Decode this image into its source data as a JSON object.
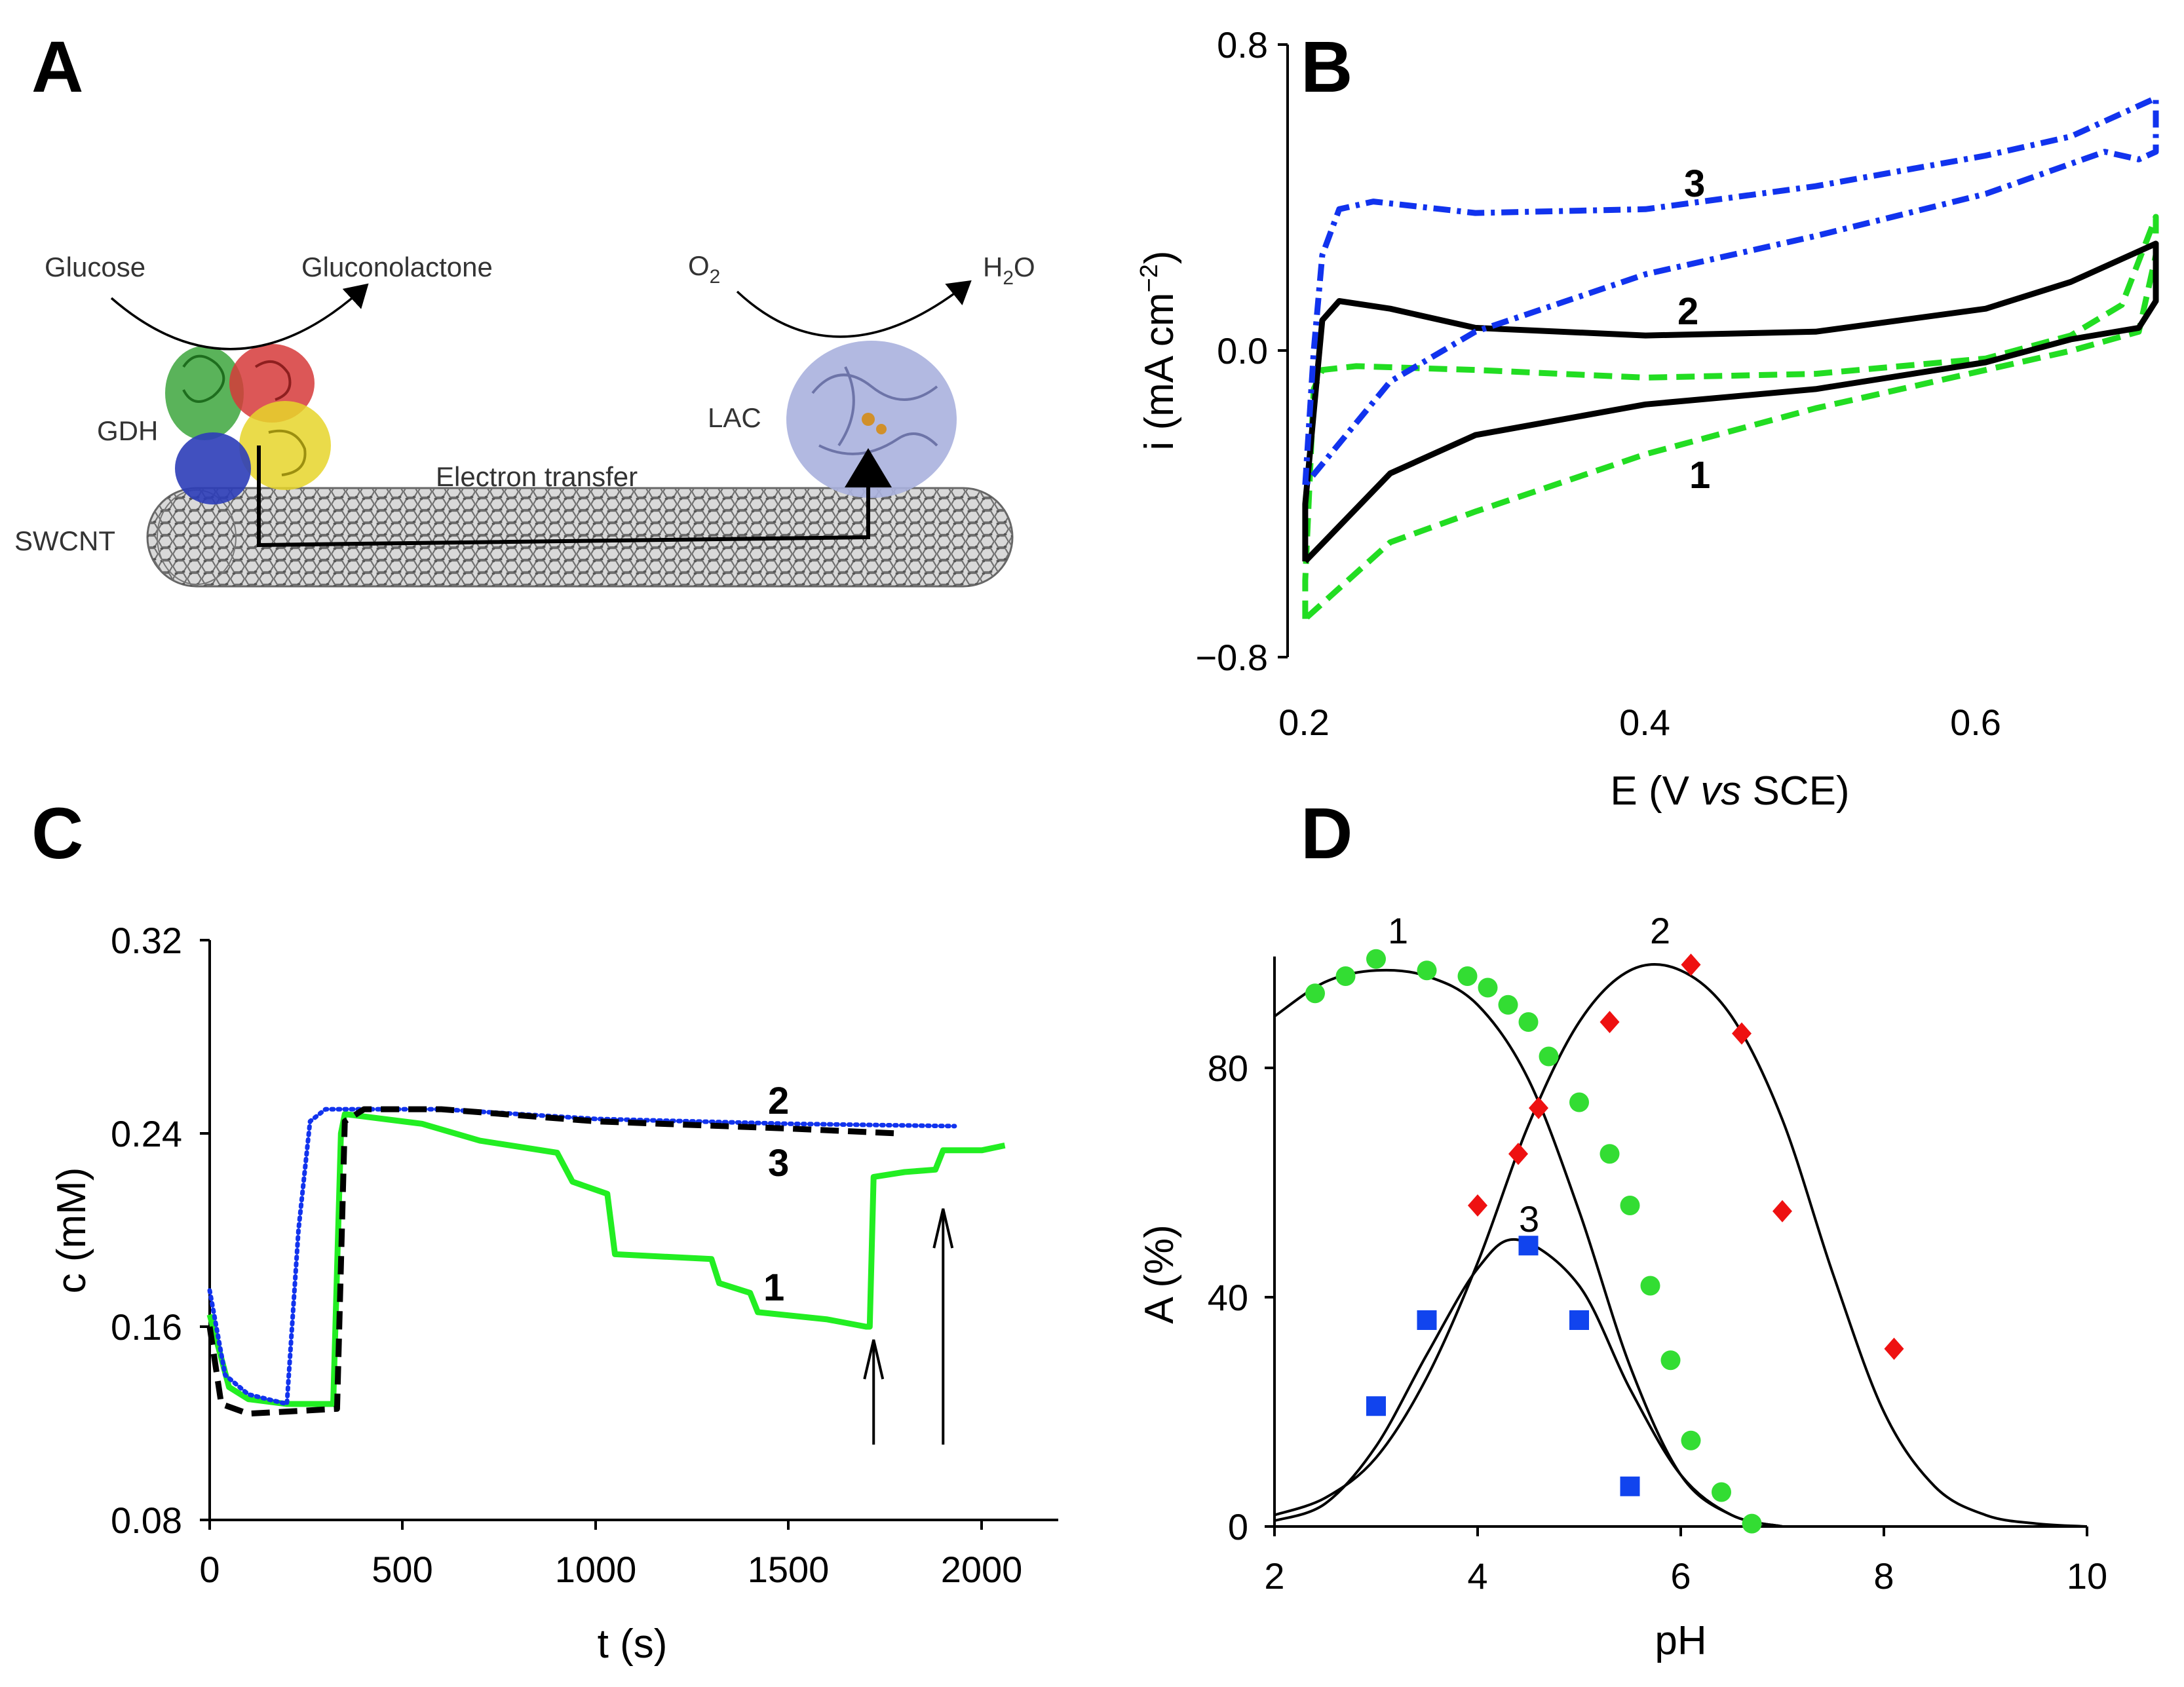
{
  "figure": {
    "panels": [
      {
        "letter": "A"
      },
      {
        "letter": "B"
      },
      {
        "letter": "C"
      },
      {
        "letter": "D"
      }
    ]
  },
  "schematic": {
    "substrate1": "Glucose",
    "product1": "Gluconolactone",
    "substrate2": "O",
    "substrate2_sub": "2",
    "product2": "H",
    "product2_sub": "2",
    "product2_tail": "O",
    "enzyme1": "GDH",
    "enzyme2": "LAC",
    "support": "SWCNT",
    "process": "Electron transfer"
  },
  "chart_data": [
    {
      "panel": "B",
      "type": "line",
      "title": "",
      "xlabel": "E (V vs SCE)",
      "xlabel_parts": [
        "E (V ",
        "vs",
        " SCE)"
      ],
      "ylabel": "i (mA cm−2)",
      "ylabel_parts": [
        "i (mA cm",
        "−2",
        ")"
      ],
      "xlim": [
        0.18,
        0.7
      ],
      "ylim": [
        -0.8,
        0.8
      ],
      "xticks": [
        0.2,
        0.4,
        0.6
      ],
      "xtick_labels": [
        "0.2",
        "0.4",
        "0.6"
      ],
      "yticks": [
        -0.8,
        0.0,
        0.8
      ],
      "ytick_labels": [
        "−0.8",
        "0.0",
        "0.8"
      ],
      "curve_labels": [
        "1",
        "2",
        "3"
      ],
      "series": [
        {
          "name": "1",
          "color": "#22dd22",
          "style": "dashed",
          "points": [
            [
              0.2,
              -0.7
            ],
            [
              0.2,
              -0.6
            ],
            [
              0.205,
              -0.1
            ],
            [
              0.21,
              -0.05
            ],
            [
              0.23,
              -0.04
            ],
            [
              0.3,
              -0.05
            ],
            [
              0.4,
              -0.07
            ],
            [
              0.5,
              -0.06
            ],
            [
              0.6,
              -0.02
            ],
            [
              0.65,
              0.04
            ],
            [
              0.68,
              0.12
            ],
            [
              0.7,
              0.35
            ],
            [
              0.7,
              0.25
            ],
            [
              0.69,
              0.05
            ],
            [
              0.65,
              0.0
            ],
            [
              0.6,
              -0.05
            ],
            [
              0.5,
              -0.15
            ],
            [
              0.4,
              -0.27
            ],
            [
              0.3,
              -0.42
            ],
            [
              0.25,
              -0.5
            ],
            [
              0.2,
              -0.7
            ]
          ]
        },
        {
          "name": "2",
          "color": "#000000",
          "style": "solid",
          "points": [
            [
              0.2,
              -0.55
            ],
            [
              0.2,
              -0.4
            ],
            [
              0.21,
              0.08
            ],
            [
              0.22,
              0.13
            ],
            [
              0.25,
              0.11
            ],
            [
              0.3,
              0.06
            ],
            [
              0.4,
              0.04
            ],
            [
              0.5,
              0.05
            ],
            [
              0.6,
              0.11
            ],
            [
              0.65,
              0.18
            ],
            [
              0.7,
              0.28
            ],
            [
              0.7,
              0.13
            ],
            [
              0.69,
              0.06
            ],
            [
              0.65,
              0.03
            ],
            [
              0.6,
              -0.03
            ],
            [
              0.5,
              -0.1
            ],
            [
              0.4,
              -0.14
            ],
            [
              0.3,
              -0.22
            ],
            [
              0.25,
              -0.32
            ],
            [
              0.2,
              -0.55
            ]
          ]
        },
        {
          "name": "3",
          "color": "#1133ee",
          "style": "dashdot",
          "points": [
            [
              0.2,
              -0.35
            ],
            [
              0.205,
              0.0
            ],
            [
              0.21,
              0.25
            ],
            [
              0.22,
              0.37
            ],
            [
              0.24,
              0.39
            ],
            [
              0.3,
              0.36
            ],
            [
              0.4,
              0.37
            ],
            [
              0.5,
              0.43
            ],
            [
              0.6,
              0.51
            ],
            [
              0.65,
              0.56
            ],
            [
              0.7,
              0.66
            ],
            [
              0.7,
              0.52
            ],
            [
              0.69,
              0.5
            ],
            [
              0.67,
              0.52
            ],
            [
              0.6,
              0.41
            ],
            [
              0.5,
              0.3
            ],
            [
              0.4,
              0.2
            ],
            [
              0.3,
              0.05
            ],
            [
              0.25,
              -0.08
            ],
            [
              0.2,
              -0.35
            ]
          ]
        }
      ]
    },
    {
      "panel": "C",
      "type": "line",
      "title": "",
      "xlabel": "t (s)",
      "ylabel": "c (mM)",
      "xlim": [
        0,
        2200
      ],
      "ylim": [
        0.08,
        0.32
      ],
      "xticks": [
        0,
        500,
        1000,
        1500,
        2000
      ],
      "xtick_labels": [
        "0",
        "500",
        "1000",
        "1500",
        "2000"
      ],
      "yticks": [
        0.08,
        0.16,
        0.24,
        0.32
      ],
      "ytick_labels": [
        "0.08",
        "0.16",
        "0.24",
        "0.32"
      ],
      "curve_labels": [
        "1",
        "2",
        "3"
      ],
      "arrows_at_t": [
        1720,
        1900
      ],
      "series": [
        {
          "name": "1",
          "color": "#22ee22",
          "style": "solid",
          "points": [
            [
              0,
              0.165
            ],
            [
              50,
              0.135
            ],
            [
              100,
              0.13
            ],
            [
              200,
              0.128
            ],
            [
              300,
              0.128
            ],
            [
              320,
              0.128
            ],
            [
              340,
              0.24
            ],
            [
              350,
              0.248
            ],
            [
              500,
              0.245
            ],
            [
              550,
              0.244
            ],
            [
              700,
              0.237
            ],
            [
              900,
              0.232
            ],
            [
              940,
              0.22
            ],
            [
              1030,
              0.215
            ],
            [
              1050,
              0.19
            ],
            [
              1300,
              0.188
            ],
            [
              1320,
              0.178
            ],
            [
              1400,
              0.174
            ],
            [
              1420,
              0.166
            ],
            [
              1600,
              0.163
            ],
            [
              1700,
              0.16
            ],
            [
              1710,
              0.16
            ],
            [
              1720,
              0.222
            ],
            [
              1800,
              0.224
            ],
            [
              1880,
              0.225
            ],
            [
              1900,
              0.233
            ],
            [
              2000,
              0.233
            ],
            [
              2060,
              0.235
            ]
          ]
        },
        {
          "name": "2",
          "color": "#1133ee",
          "style": "dotted",
          "points": [
            [
              0,
              0.175
            ],
            [
              40,
              0.14
            ],
            [
              100,
              0.132
            ],
            [
              200,
              0.128
            ],
            [
              230,
              0.2
            ],
            [
              260,
              0.245
            ],
            [
              300,
              0.25
            ],
            [
              600,
              0.25
            ],
            [
              1000,
              0.246
            ],
            [
              1500,
              0.244
            ],
            [
              1930,
              0.243
            ]
          ]
        },
        {
          "name": "3",
          "color": "#000000",
          "style": "dashed",
          "points": [
            [
              0,
              0.16
            ],
            [
              30,
              0.128
            ],
            [
              100,
              0.124
            ],
            [
              330,
              0.126
            ],
            [
              350,
              0.245
            ],
            [
              400,
              0.25
            ],
            [
              600,
              0.25
            ],
            [
              1000,
              0.245
            ],
            [
              1500,
              0.242
            ],
            [
              1780,
              0.24
            ]
          ]
        }
      ]
    },
    {
      "panel": "D",
      "type": "scatter",
      "title": "",
      "xlabel": "pH",
      "ylabel": "A (%)",
      "xlim": [
        2,
        10
      ],
      "ylim": [
        0,
        100
      ],
      "xticks": [
        2,
        4,
        6,
        8,
        10
      ],
      "xtick_labels": [
        "2",
        "4",
        "6",
        "8",
        "10"
      ],
      "yticks": [
        0,
        40,
        80
      ],
      "ytick_labels": [
        "0",
        "40",
        "80"
      ],
      "curve_labels": [
        "1",
        "2",
        "3"
      ],
      "series": [
        {
          "name": "1",
          "color": "#33dd33",
          "marker": "circle",
          "x": [
            2.4,
            2.7,
            3.0,
            3.5,
            3.9,
            4.1,
            4.3,
            4.5,
            4.7,
            5.0,
            5.3,
            5.5,
            5.7,
            5.9,
            6.1,
            6.4,
            6.7
          ],
          "y": [
            93,
            96,
            99,
            97,
            96,
            94,
            91,
            88,
            82,
            74,
            65,
            56,
            42,
            29,
            15,
            6,
            0.5
          ]
        },
        {
          "name": "2",
          "color": "#ee1111",
          "marker": "diamond",
          "x": [
            4.0,
            4.4,
            4.6,
            5.3,
            6.1,
            6.6,
            7.0,
            8.1
          ],
          "y": [
            56,
            65,
            73,
            88,
            98,
            86,
            55,
            31
          ]
        },
        {
          "name": "3",
          "color": "#1144ee",
          "marker": "square",
          "x": [
            3.0,
            3.5,
            4.5,
            5.0,
            5.5
          ],
          "y": [
            21,
            36,
            49,
            36,
            7
          ]
        }
      ],
      "fits": [
        {
          "name": "1",
          "color": "#000000",
          "x": [
            2.0,
            2.5,
            3.0,
            3.5,
            4.0,
            4.5,
            5.0,
            5.5,
            6.0,
            6.5,
            7.0
          ],
          "y": [
            89,
            95,
            97,
            96,
            91,
            78,
            55,
            28,
            9,
            2,
            0
          ]
        },
        {
          "name": "2",
          "color": "#000000",
          "x": [
            2.0,
            2.5,
            3.0,
            3.5,
            4.0,
            4.5,
            5.0,
            5.5,
            6.0,
            6.5,
            7.0,
            7.5,
            8.0,
            8.5,
            9.0,
            9.5,
            10.0
          ],
          "y": [
            2,
            5,
            12,
            26,
            46,
            70,
            88,
            97,
            97,
            89,
            71,
            44,
            20,
            7,
            2,
            0.5,
            0
          ]
        },
        {
          "name": "3",
          "color": "#000000",
          "x": [
            2.0,
            2.5,
            3.0,
            3.5,
            4.0,
            4.4,
            5.0,
            5.5,
            6.0,
            6.5,
            7.0
          ],
          "y": [
            1,
            4,
            14,
            30,
            45,
            50,
            42,
            24,
            9,
            2,
            0
          ]
        }
      ]
    }
  ]
}
